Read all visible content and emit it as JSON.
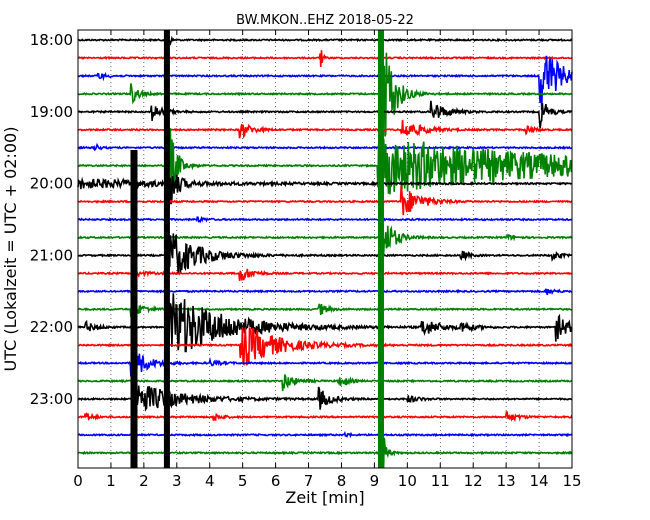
{
  "chart_data": {
    "type": "line",
    "title": "BW.MKON..EHZ 2018-05-22",
    "xlabel": "Zeit  [min]",
    "ylabel": "UTC (Lokalzeit = UTC + 02:00)",
    "xlim": [
      0,
      15
    ],
    "x_ticks": [
      "0",
      "1",
      "2",
      "3",
      "4",
      "5",
      "6",
      "7",
      "8",
      "9",
      "10",
      "11",
      "12",
      "13",
      "14",
      "15"
    ],
    "y_tick_labels": [
      "18:00",
      "19:00",
      "20:00",
      "21:00",
      "22:00",
      "23:00"
    ],
    "grid": "vertical-dotted",
    "trace_interval_min": 15,
    "traces": [
      {
        "start": "18:00",
        "color": "#000000",
        "events": [
          {
            "t": 2.7,
            "amp": 30,
            "dur": 0.05
          }
        ]
      },
      {
        "start": "18:15",
        "color": "#ff0000",
        "events": [
          {
            "t": 7.35,
            "amp": 18,
            "dur": 0.05
          }
        ]
      },
      {
        "start": "18:30",
        "color": "#0000ff",
        "events": [
          {
            "t": 0.6,
            "amp": 4,
            "dur": 0.2
          },
          {
            "t": 14.0,
            "amp": 40,
            "dur": 0.5
          }
        ]
      },
      {
        "start": "18:45",
        "color": "#008000",
        "events": [
          {
            "t": 1.6,
            "amp": 12,
            "dur": 0.2
          },
          {
            "t": 9.2,
            "amp": 80,
            "dur": 0.3
          }
        ]
      },
      {
        "start": "19:00",
        "color": "#000000",
        "events": [
          {
            "t": 2.2,
            "amp": 10,
            "dur": 0.3
          },
          {
            "t": 10.7,
            "amp": 12,
            "dur": 0.4
          },
          {
            "t": 14.0,
            "amp": 20,
            "dur": 0.2
          }
        ]
      },
      {
        "start": "19:15",
        "color": "#ff0000",
        "events": [
          {
            "t": 4.9,
            "amp": 10,
            "dur": 0.3
          },
          {
            "t": 9.8,
            "amp": 12,
            "dur": 0.5
          },
          {
            "t": 13.6,
            "amp": 5,
            "dur": 0.2
          }
        ]
      },
      {
        "start": "19:30",
        "color": "#0000ff",
        "events": [
          {
            "t": 0.5,
            "amp": 6,
            "dur": 0.1
          }
        ]
      },
      {
        "start": "19:45",
        "color": "#008000",
        "events": [
          {
            "t": 9.1,
            "amp": 30,
            "dur": 5.5
          },
          {
            "t": 2.8,
            "amp": 40,
            "dur": 0.2
          }
        ]
      },
      {
        "start": "20:00",
        "color": "#000000",
        "events": [
          {
            "t": 0.0,
            "amp": 5,
            "dur": 3.0
          },
          {
            "t": 2.7,
            "amp": 40,
            "dur": 0.2
          }
        ]
      },
      {
        "start": "20:15",
        "color": "#ff0000",
        "events": [
          {
            "t": 9.8,
            "amp": 18,
            "dur": 0.5
          }
        ]
      },
      {
        "start": "20:30",
        "color": "#0000ff",
        "events": [
          {
            "t": 3.6,
            "amp": 3,
            "dur": 0.2
          }
        ]
      },
      {
        "start": "20:45",
        "color": "#008000",
        "events": [
          {
            "t": 9.2,
            "amp": 30,
            "dur": 0.3
          },
          {
            "t": 13.0,
            "amp": 3,
            "dur": 0.2
          }
        ]
      },
      {
        "start": "21:00",
        "color": "#000000",
        "events": [
          {
            "t": 2.7,
            "amp": 30,
            "dur": 0.8
          },
          {
            "t": 11.6,
            "amp": 6,
            "dur": 0.2
          },
          {
            "t": 14.4,
            "amp": 5,
            "dur": 0.2
          }
        ]
      },
      {
        "start": "21:15",
        "color": "#ff0000",
        "events": [
          {
            "t": 1.6,
            "amp": 5,
            "dur": 0.3
          },
          {
            "t": 4.9,
            "amp": 10,
            "dur": 0.3
          }
        ]
      },
      {
        "start": "21:30",
        "color": "#0000ff",
        "events": [
          {
            "t": 14.2,
            "amp": 4,
            "dur": 0.2
          }
        ]
      },
      {
        "start": "21:45",
        "color": "#008000",
        "events": [
          {
            "t": 7.3,
            "amp": 8,
            "dur": 0.2
          },
          {
            "t": 1.6,
            "amp": 10,
            "dur": 0.3
          }
        ]
      },
      {
        "start": "22:00",
        "color": "#000000",
        "events": [
          {
            "t": 0.2,
            "amp": 6,
            "dur": 0.3
          },
          {
            "t": 2.7,
            "amp": 40,
            "dur": 1.5
          },
          {
            "t": 10.4,
            "amp": 10,
            "dur": 0.5
          },
          {
            "t": 11.6,
            "amp": 6,
            "dur": 0.3
          },
          {
            "t": 14.5,
            "amp": 14,
            "dur": 0.4
          }
        ]
      },
      {
        "start": "22:15",
        "color": "#ff0000",
        "events": [
          {
            "t": 4.9,
            "amp": 25,
            "dur": 1.0
          }
        ]
      },
      {
        "start": "22:30",
        "color": "#0000ff",
        "events": [
          {
            "t": 1.6,
            "amp": 20,
            "dur": 0.4
          },
          {
            "t": 4.0,
            "amp": 3,
            "dur": 0.3
          }
        ]
      },
      {
        "start": "22:45",
        "color": "#008000",
        "events": [
          {
            "t": 6.2,
            "amp": 10,
            "dur": 0.3
          },
          {
            "t": 7.9,
            "amp": 10,
            "dur": 0.2
          }
        ]
      },
      {
        "start": "23:00",
        "color": "#000000",
        "events": [
          {
            "t": 1.7,
            "amp": 18,
            "dur": 1.2
          },
          {
            "t": 7.3,
            "amp": 12,
            "dur": 0.3
          },
          {
            "t": 10.0,
            "amp": 4,
            "dur": 0.3
          }
        ]
      },
      {
        "start": "23:15",
        "color": "#ff0000",
        "events": [
          {
            "t": 0.2,
            "amp": 5,
            "dur": 0.2
          },
          {
            "t": 4.1,
            "amp": 5,
            "dur": 0.2
          },
          {
            "t": 13.0,
            "amp": 5,
            "dur": 0.3
          }
        ]
      },
      {
        "start": "23:30",
        "color": "#0000ff",
        "events": [
          {
            "t": 8.1,
            "amp": 3,
            "dur": 0.1
          }
        ]
      },
      {
        "start": "23:45",
        "color": "#008000",
        "events": [
          {
            "t": 9.2,
            "amp": 40,
            "dur": 0.1
          }
        ]
      }
    ],
    "full_height_events": [
      {
        "t": 2.7,
        "color": "#000000"
      },
      {
        "t": 9.2,
        "color": "#008000"
      },
      {
        "t": 1.7,
        "color": "#000000"
      }
    ]
  }
}
